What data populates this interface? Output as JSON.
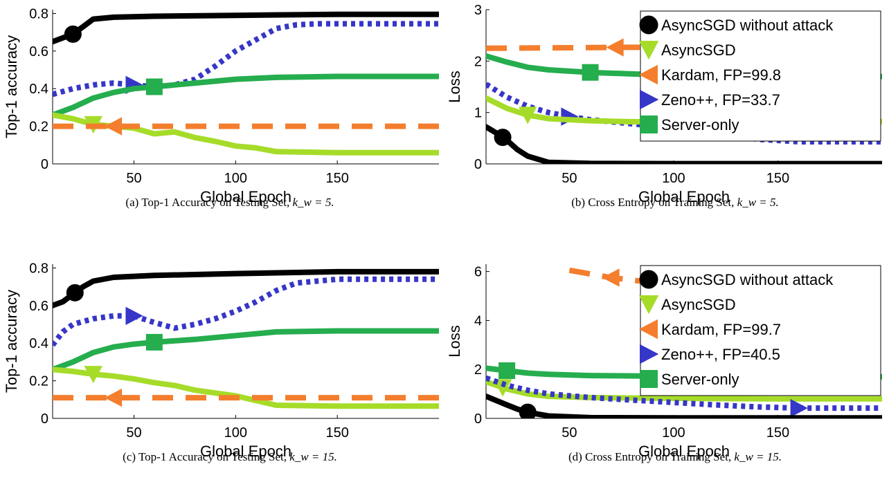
{
  "colors": {
    "AsyncSGD without attack": "#000000",
    "AsyncSGD": "#a6dc29",
    "Kardam": "#f47e2d",
    "Zeno++": "#3636c8",
    "Server-only": "#25ad4e"
  },
  "chart_data": [
    {
      "type": "line",
      "panel": "a",
      "caption": "(a) Top-1 Accuracy on Testing Set,",
      "caption_math": "k_w = 5.",
      "xlabel": "Global Epoch",
      "ylabel": "Top-1 accuracy",
      "xlim": [
        10,
        200
      ],
      "ylim": [
        0,
        0.82
      ],
      "xticks": [
        50,
        100,
        150
      ],
      "yticks": [
        0,
        0.2,
        0.4,
        0.6,
        0.8
      ],
      "grid": false,
      "legend": null,
      "series": [
        {
          "key": "AsyncSGD without attack",
          "x": [
            10,
            15,
            20,
            25,
            30,
            40,
            60,
            100,
            150,
            200
          ],
          "y": [
            0.65,
            0.67,
            0.69,
            0.73,
            0.77,
            0.78,
            0.785,
            0.79,
            0.795,
            0.795
          ],
          "marker_x": 20,
          "marker": "circle"
        },
        {
          "key": "Zeno++",
          "x": [
            10,
            20,
            30,
            40,
            50,
            60,
            70,
            80,
            90,
            100,
            110,
            120,
            130,
            140,
            150,
            200
          ],
          "y": [
            0.37,
            0.4,
            0.42,
            0.43,
            0.42,
            0.41,
            0.42,
            0.45,
            0.52,
            0.6,
            0.66,
            0.72,
            0.74,
            0.745,
            0.745,
            0.745
          ],
          "marker_x": 50,
          "marker": "triangle-right"
        },
        {
          "key": "Server-only",
          "x": [
            10,
            20,
            30,
            40,
            50,
            60,
            80,
            100,
            120,
            150,
            200
          ],
          "y": [
            0.26,
            0.3,
            0.35,
            0.38,
            0.4,
            0.41,
            0.43,
            0.45,
            0.46,
            0.465,
            0.465
          ],
          "marker_x": 60,
          "marker": "square"
        },
        {
          "key": "AsyncSGD",
          "x": [
            10,
            20,
            30,
            40,
            50,
            60,
            70,
            80,
            90,
            100,
            110,
            120,
            150,
            200
          ],
          "y": [
            0.26,
            0.24,
            0.21,
            0.2,
            0.19,
            0.16,
            0.17,
            0.14,
            0.12,
            0.095,
            0.085,
            0.065,
            0.06,
            0.06
          ],
          "marker_x": 30,
          "marker": "triangle-down"
        },
        {
          "key": "Kardam",
          "x": [
            10,
            200
          ],
          "y": [
            0.2,
            0.2
          ],
          "marker_x": 40,
          "marker": "triangle-left",
          "dashed": true
        }
      ]
    },
    {
      "type": "line",
      "panel": "b",
      "caption": "(b) Cross Entropy on Training Set,",
      "caption_math": "k_w = 5.",
      "xlabel": "Global Epoch",
      "ylabel": "Loss",
      "xlim": [
        10,
        200
      ],
      "ylim": [
        0,
        3
      ],
      "xticks": [
        50,
        100,
        150
      ],
      "yticks": [
        0,
        1,
        2,
        3
      ],
      "grid": false,
      "legend": "top-right",
      "legend_entries": [
        "AsyncSGD without attack",
        "AsyncSGD",
        "Kardam, FP=99.8",
        "Zeno++, FP=33.7",
        "Server-only"
      ],
      "series": [
        {
          "key": "Kardam",
          "x": [
            10,
            200
          ],
          "y": [
            2.25,
            2.3
          ],
          "marker_x": 72,
          "marker": "triangle-left",
          "dashed": true
        },
        {
          "key": "Server-only",
          "x": [
            10,
            20,
            30,
            40,
            60,
            80,
            100,
            150,
            200
          ],
          "y": [
            2.1,
            1.98,
            1.88,
            1.83,
            1.78,
            1.75,
            1.72,
            1.7,
            1.7
          ],
          "marker_x": 60,
          "marker": "square"
        },
        {
          "key": "Zeno++",
          "x": [
            10,
            20,
            30,
            40,
            50,
            60,
            80,
            100,
            120,
            140,
            160,
            200
          ],
          "y": [
            1.55,
            1.3,
            1.12,
            1.0,
            0.92,
            0.86,
            0.78,
            0.7,
            0.6,
            0.48,
            0.43,
            0.43
          ],
          "marker_x": 50,
          "marker": "triangle-right"
        },
        {
          "key": "AsyncSGD",
          "x": [
            10,
            20,
            30,
            40,
            60,
            80,
            100,
            150,
            200
          ],
          "y": [
            1.28,
            1.08,
            0.95,
            0.88,
            0.84,
            0.82,
            0.82,
            0.82,
            0.82
          ],
          "marker_x": 30,
          "marker": "triangle-down"
        },
        {
          "key": "AsyncSGD without attack",
          "x": [
            10,
            15,
            20,
            25,
            30,
            40,
            60,
            100,
            150,
            200
          ],
          "y": [
            0.72,
            0.6,
            0.46,
            0.28,
            0.15,
            0.03,
            0.01,
            0.005,
            0.005,
            0.005
          ],
          "marker_x": 18,
          "marker": "circle"
        }
      ]
    },
    {
      "type": "line",
      "panel": "c",
      "caption": "(c) Top-1 Accuracy on Testing Set,",
      "caption_math": "k_w = 15.",
      "xlabel": "Global Epoch",
      "ylabel": "Top-1 accuracy",
      "xlim": [
        10,
        200
      ],
      "ylim": [
        0,
        0.82
      ],
      "xticks": [
        50,
        100,
        150
      ],
      "yticks": [
        0,
        0.2,
        0.4,
        0.6,
        0.8
      ],
      "grid": false,
      "legend": null,
      "series": [
        {
          "key": "AsyncSGD without attack",
          "x": [
            10,
            15,
            20,
            25,
            30,
            40,
            60,
            100,
            150,
            200
          ],
          "y": [
            0.6,
            0.62,
            0.66,
            0.7,
            0.73,
            0.75,
            0.76,
            0.77,
            0.78,
            0.78
          ],
          "marker_x": 21,
          "marker": "circle"
        },
        {
          "key": "Zeno++",
          "x": [
            10,
            15,
            20,
            30,
            40,
            50,
            60,
            70,
            80,
            90,
            100,
            110,
            120,
            130,
            140,
            150,
            200
          ],
          "y": [
            0.39,
            0.46,
            0.5,
            0.53,
            0.545,
            0.545,
            0.51,
            0.48,
            0.5,
            0.53,
            0.57,
            0.62,
            0.68,
            0.72,
            0.73,
            0.74,
            0.74
          ],
          "marker_x": 50,
          "marker": "triangle-right"
        },
        {
          "key": "Server-only",
          "x": [
            10,
            20,
            30,
            40,
            50,
            60,
            80,
            100,
            120,
            150,
            200
          ],
          "y": [
            0.26,
            0.3,
            0.35,
            0.38,
            0.395,
            0.405,
            0.42,
            0.44,
            0.46,
            0.465,
            0.465
          ],
          "marker_x": 60,
          "marker": "square"
        },
        {
          "key": "AsyncSGD",
          "x": [
            10,
            20,
            30,
            40,
            50,
            60,
            70,
            80,
            90,
            100,
            110,
            120,
            150,
            200
          ],
          "y": [
            0.26,
            0.25,
            0.235,
            0.225,
            0.21,
            0.19,
            0.175,
            0.15,
            0.135,
            0.12,
            0.095,
            0.07,
            0.065,
            0.065
          ],
          "marker_x": 30,
          "marker": "triangle-down"
        },
        {
          "key": "Kardam",
          "x": [
            10,
            200
          ],
          "y": [
            0.11,
            0.11
          ],
          "marker_x": 40,
          "marker": "triangle-left",
          "dashed": true
        }
      ]
    },
    {
      "type": "line",
      "panel": "d",
      "caption": "(d) Cross Entropy on Training Set,",
      "caption_math": "k_w = 15.",
      "xlabel": "Global Epoch",
      "ylabel": "Loss",
      "xlim": [
        10,
        200
      ],
      "ylim": [
        0,
        6.3
      ],
      "xticks": [
        50,
        100,
        150
      ],
      "yticks": [
        0,
        2,
        4,
        6
      ],
      "grid": false,
      "legend": "top-right",
      "legend_entries": [
        "AsyncSGD without attack",
        "AsyncSGD",
        "Kardam, FP=99.7",
        "Zeno++, FP=40.5",
        "Server-only"
      ],
      "series": [
        {
          "key": "Kardam",
          "x": [
            50,
            70,
            85
          ],
          "y": [
            6.05,
            5.75,
            5.6
          ],
          "marker_x": 70,
          "marker": "triangle-left",
          "dashed": true
        },
        {
          "key": "Server-only",
          "x": [
            10,
            20,
            30,
            40,
            60,
            100,
            150,
            200
          ],
          "y": [
            2.05,
            1.95,
            1.85,
            1.8,
            1.75,
            1.72,
            1.7,
            1.7
          ],
          "marker_x": 20,
          "marker": "square"
        },
        {
          "key": "AsyncSGD",
          "x": [
            10,
            20,
            30,
            40,
            60,
            100,
            150,
            200
          ],
          "y": [
            1.5,
            1.2,
            1.0,
            0.9,
            0.85,
            0.82,
            0.8,
            0.8
          ],
          "marker_x": 18,
          "marker": "triangle-down"
        },
        {
          "key": "Zeno++",
          "x": [
            10,
            20,
            30,
            40,
            60,
            80,
            100,
            120,
            140,
            160,
            200
          ],
          "y": [
            1.65,
            1.35,
            1.15,
            1.0,
            0.85,
            0.75,
            0.65,
            0.55,
            0.47,
            0.42,
            0.42
          ],
          "marker_x": 160,
          "marker": "triangle-right"
        },
        {
          "key": "AsyncSGD without attack",
          "x": [
            10,
            20,
            25,
            30,
            40,
            60,
            100,
            150,
            200
          ],
          "y": [
            0.9,
            0.55,
            0.38,
            0.25,
            0.1,
            0.03,
            0.02,
            0.02,
            0.02
          ],
          "marker_x": 30,
          "marker": "circle"
        }
      ]
    }
  ]
}
